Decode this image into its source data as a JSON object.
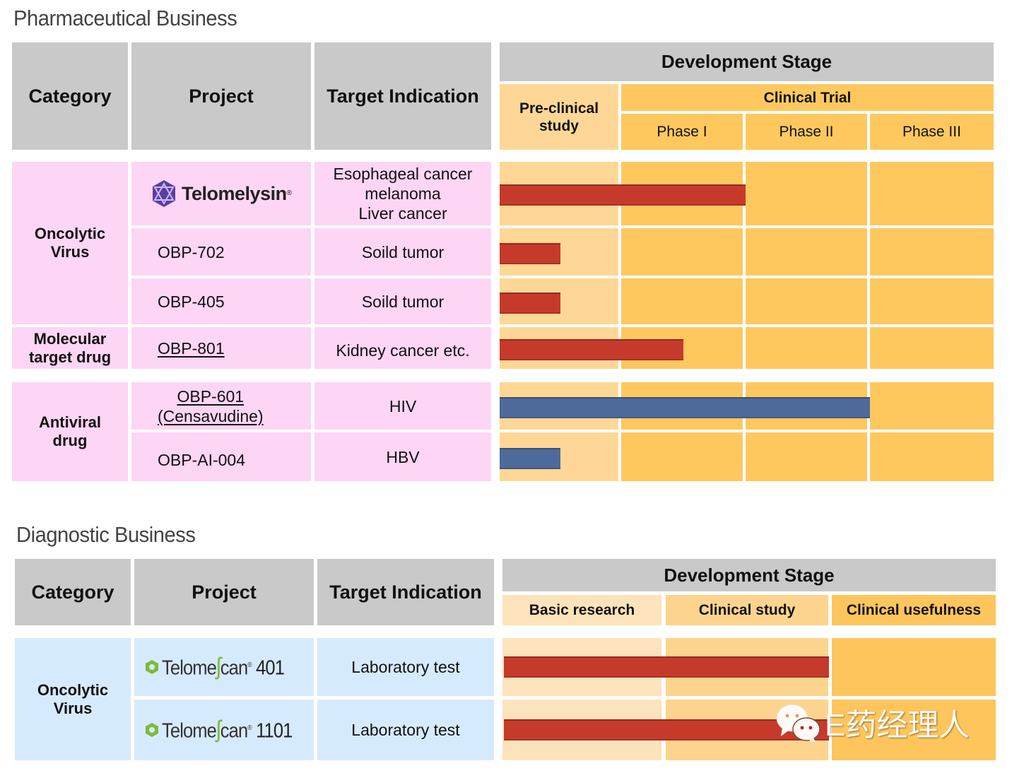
{
  "pharma": {
    "title": "Pharmaceutical Business",
    "headers": {
      "category": "Category",
      "project": "Project",
      "target": "Target Indication",
      "dev_stage": "Development Stage"
    },
    "stages": {
      "pre_clinical": "Pre-clinical\nstudy",
      "clinical_trial": "Clinical Trial",
      "phase1": "Phase I",
      "phase2": "Phase II",
      "phase3": "Phase III"
    },
    "categories": [
      "Oncolytic\nVirus",
      "Molecular\ntarget drug",
      "Antiviral\ndrug"
    ],
    "rows": [
      {
        "project": "Telomelysin",
        "project_mark": "®",
        "target": "Esophageal cancer\nmelanoma\nLiver cancer",
        "progress": "Phase I (completed)",
        "bar_color": "#c63a2c"
      },
      {
        "project": "OBP-702",
        "target": "Soild tumor",
        "progress": "Pre-clinical (mid)",
        "bar_color": "#c63a2c"
      },
      {
        "project": "OBP-405",
        "target": "Soild tumor",
        "progress": "Pre-clinical (mid)",
        "bar_color": "#c63a2c"
      },
      {
        "project": "OBP-801",
        "target": "Kidney cancer etc.",
        "progress": "Phase I (ongoing)",
        "bar_color": "#c63a2c"
      },
      {
        "project": "OBP-601\n(Censavudine)",
        "target": "HIV",
        "progress": "Phase II (completed)",
        "bar_color": "#4e6a9b"
      },
      {
        "project": "OBP-AI-004",
        "target": "HBV",
        "progress": "Pre-clinical (mid)",
        "bar_color": "#4e6a9b"
      }
    ]
  },
  "diag": {
    "title": "Diagnostic Business",
    "headers": {
      "category": "Category",
      "project": "Project",
      "target": "Target Indication",
      "dev_stage": "Development Stage"
    },
    "stages": {
      "basic": "Basic research",
      "clinical_study": "Clinical study",
      "usefulness": "Clinical usefulness"
    },
    "category": "Oncolytic\nVirus",
    "rows": [
      {
        "brand": "Telome",
        "brand2": "can",
        "mark": "®",
        "number": "401",
        "target": "Laboratory test",
        "progress": "Clinical study (completed)",
        "bar_color": "#c63a2c"
      },
      {
        "brand": "Telome",
        "brand2": "can",
        "mark": "®",
        "number": "1101",
        "target": "Laboratory test",
        "progress": "Clinical study (completed)",
        "bar_color": "#c63a2c"
      }
    ]
  },
  "chart_data": {
    "type": "bar",
    "title": "Development pipeline",
    "series": [
      {
        "name": "Pharmaceutical Business",
        "stages": [
          "Pre-clinical study",
          "Phase I",
          "Phase II",
          "Phase III"
        ],
        "categories": [
          "Telomelysin",
          "OBP-702",
          "OBP-405",
          "OBP-801",
          "OBP-601 (Censavudine)",
          "OBP-AI-004"
        ],
        "values": [
          2.0,
          0.5,
          0.5,
          1.5,
          3.0,
          0.5
        ]
      },
      {
        "name": "Diagnostic Business",
        "stages": [
          "Basic research",
          "Clinical study",
          "Clinical usefulness"
        ],
        "categories": [
          "TelomeScan 401",
          "TelomeScan 1101"
        ],
        "values": [
          2.0,
          2.0
        ]
      }
    ],
    "xlabel": "Development Stage (stage units)"
  },
  "watermark": "E药经理人"
}
